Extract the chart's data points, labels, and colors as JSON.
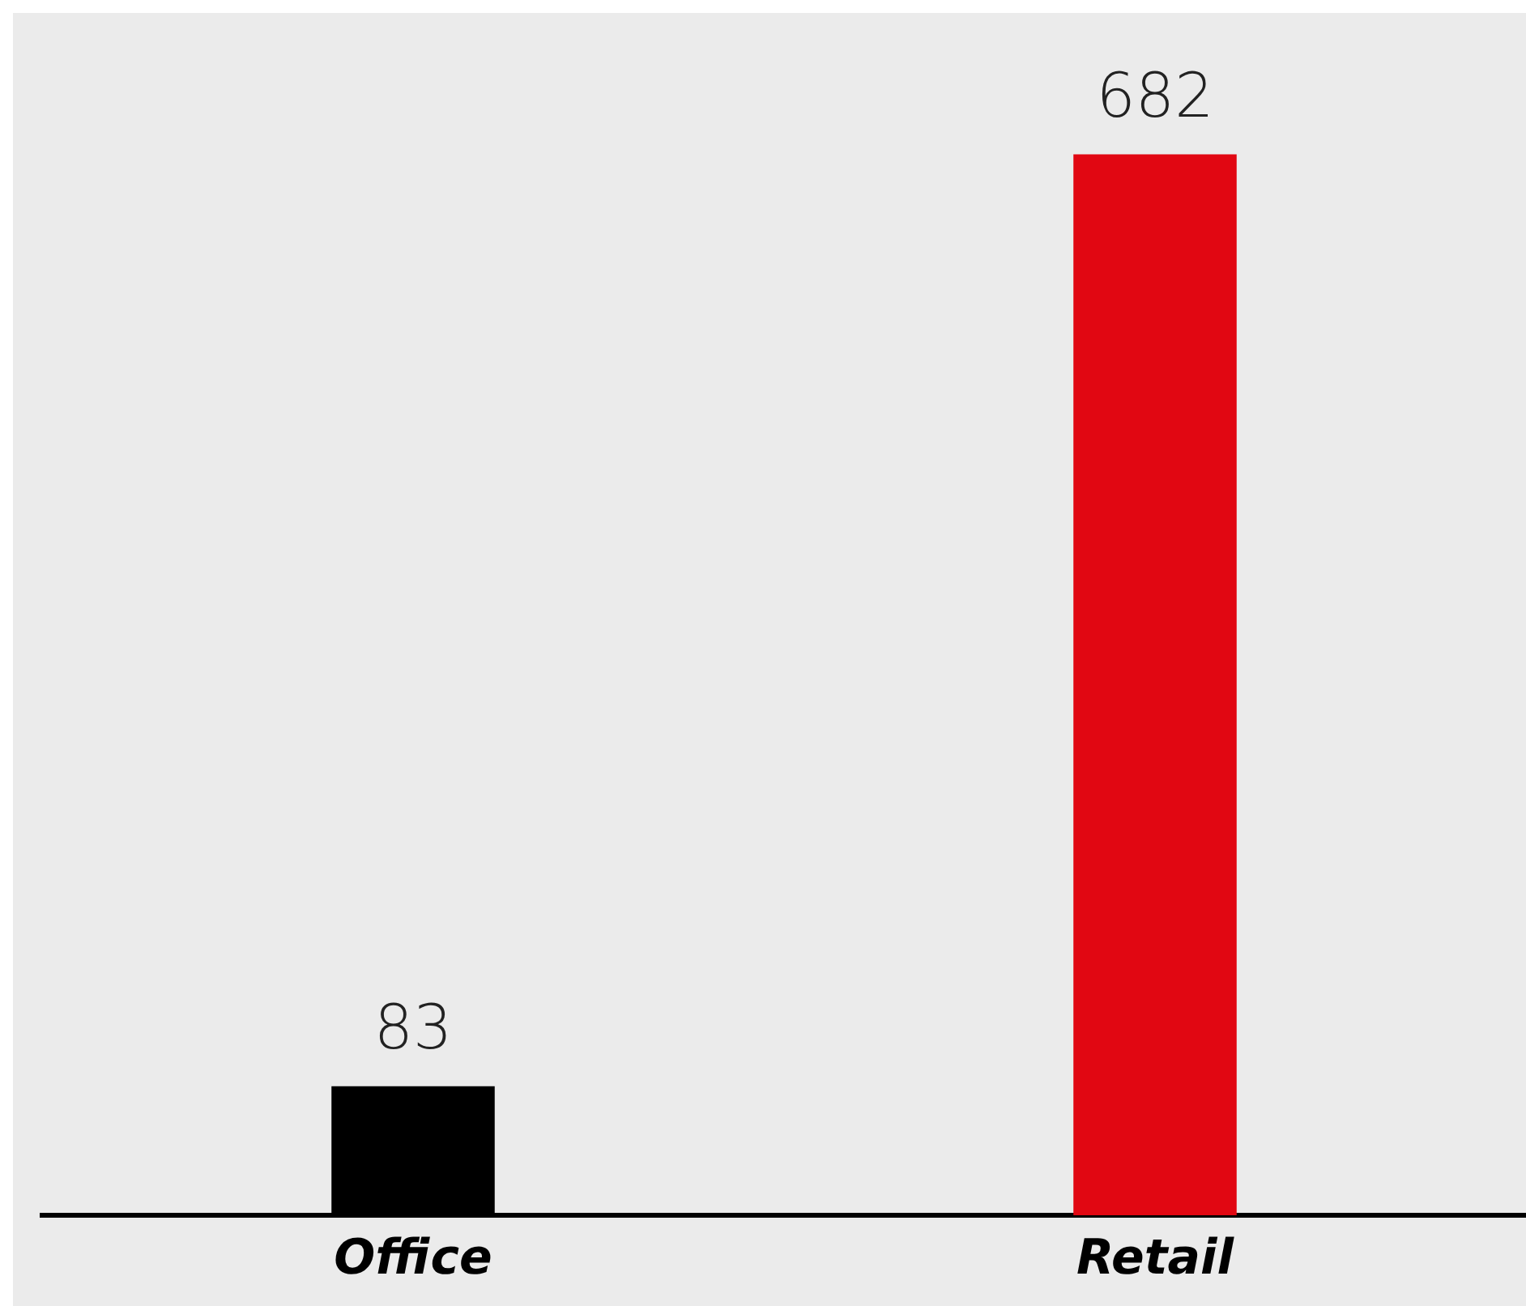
{
  "chart_data": {
    "type": "bar",
    "categories": [
      "Office",
      "Retail"
    ],
    "values": [
      83,
      682
    ],
    "colors": [
      "#000000",
      "#e10712"
    ],
    "data_labels": true,
    "legend": false,
    "grid": false
  }
}
